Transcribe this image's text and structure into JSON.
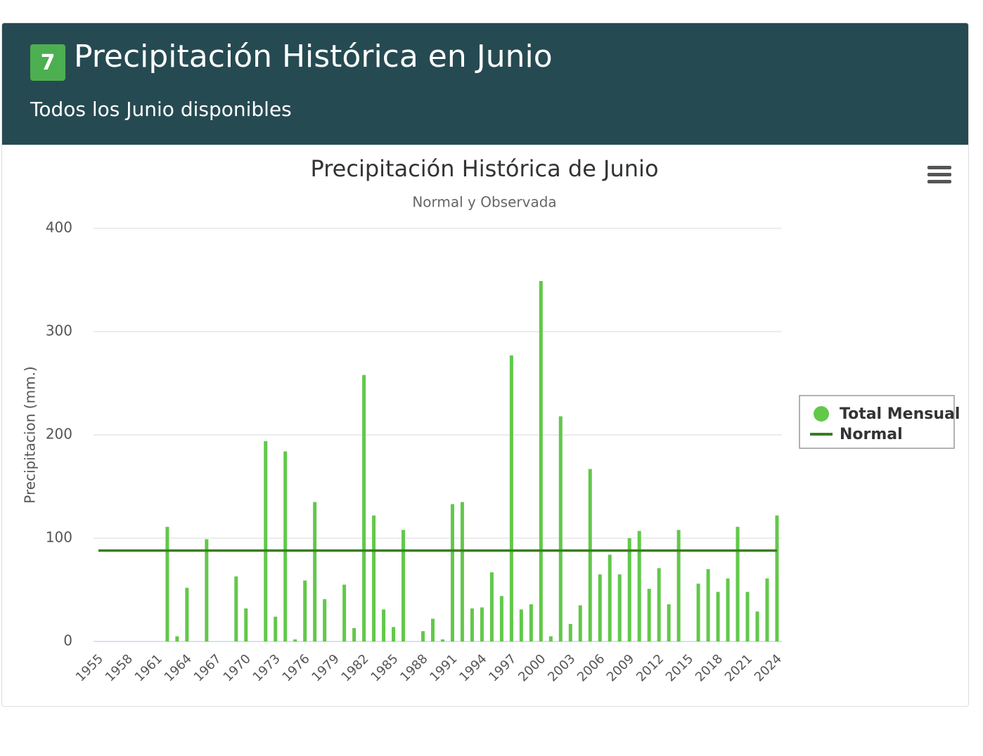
{
  "header": {
    "badge": "7",
    "title": "Precipitación Histórica en Junio",
    "subtitle": "Todos los Junio disponibles"
  },
  "chart_data": {
    "type": "bar",
    "title": "Precipitación Histórica de Junio",
    "subtitle": "Normal y Observada",
    "y_label": "Precipitacion (mm.)",
    "categories": [
      "1955",
      null,
      null,
      "1958",
      null,
      null,
      "1961",
      null,
      null,
      "1964",
      null,
      null,
      "1967",
      null,
      null,
      "1970",
      null,
      null,
      "1973",
      null,
      null,
      "1976",
      null,
      null,
      "1979",
      null,
      null,
      "1982",
      null,
      null,
      "1985",
      null,
      null,
      "1988",
      null,
      null,
      "1991",
      null,
      null,
      "1994",
      null,
      null,
      "1997",
      null,
      null,
      "2000",
      null,
      null,
      "2003",
      null,
      null,
      "2006",
      null,
      null,
      "2009",
      null,
      null,
      "2012",
      null,
      null,
      "2015",
      null,
      null,
      "2018",
      null,
      null,
      "2021",
      null,
      null,
      "2024"
    ],
    "series": [
      {
        "name": "Total Mensual",
        "color": "#62c84a",
        "type": "bar",
        "values": [
          null,
          null,
          null,
          null,
          null,
          null,
          null,
          111,
          5,
          52,
          null,
          99,
          null,
          null,
          63,
          32,
          null,
          194,
          24,
          184,
          2,
          59,
          135,
          41,
          null,
          55,
          13,
          258,
          122,
          31,
          14,
          108,
          null,
          10,
          22,
          2,
          133,
          135,
          32,
          33,
          67,
          44,
          277,
          31,
          36,
          349,
          5,
          218,
          17,
          35,
          167,
          65,
          84,
          65,
          100,
          107,
          51,
          71,
          36,
          108,
          null,
          56,
          70,
          48,
          61,
          111,
          48,
          29,
          61,
          122
        ]
      },
      {
        "name": "Normal",
        "color": "#3a7d1f",
        "type": "line",
        "values": [
          88,
          88,
          88,
          88,
          88,
          88,
          88,
          88,
          88,
          88,
          88,
          88,
          88,
          88,
          88,
          88,
          88,
          88,
          88,
          88,
          88,
          88,
          88,
          88,
          88,
          88,
          88,
          88,
          88,
          88,
          88,
          88,
          88,
          88,
          88,
          88,
          88,
          88,
          88,
          88,
          88,
          88,
          88,
          88,
          88,
          88,
          88,
          88,
          88,
          88,
          88,
          88,
          88,
          88,
          88,
          88,
          88,
          88,
          88,
          88,
          88,
          88,
          88,
          88,
          88,
          88,
          88,
          88,
          88,
          88
        ]
      }
    ],
    "ylim": [
      0,
      400
    ],
    "yticks": [
      0,
      100,
      200,
      300,
      400
    ],
    "grid": true,
    "legend": "right"
  }
}
